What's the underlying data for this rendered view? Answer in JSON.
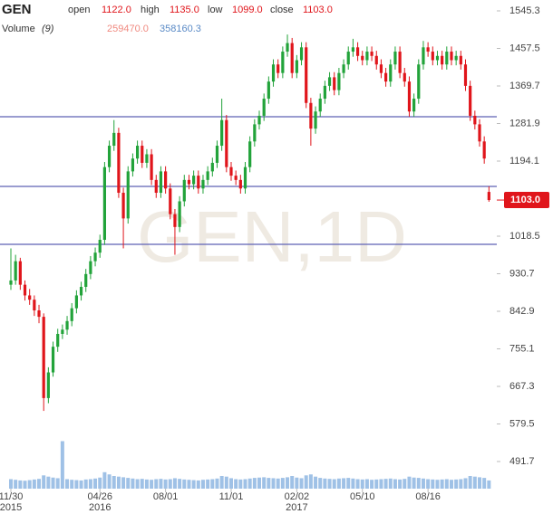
{
  "chart_data": {
    "type": "candlestick",
    "symbol": "GEN",
    "header_fields": [
      {
        "label": "open",
        "value": "1122.0"
      },
      {
        "label": "high",
        "value": "1135.0"
      },
      {
        "label": "low",
        "value": "1099.0"
      },
      {
        "label": "close",
        "value": "1103.0"
      }
    ],
    "volume_label": "Volume",
    "volume_period": "(9)",
    "volume_values": [
      "259470.0",
      "358160.3"
    ],
    "watermark": "GEN,1D",
    "ylim": [
      428.2,
      1570.7
    ],
    "yticks": [
      1545.3,
      1457.5,
      1369.7,
      1281.9,
      1194.1,
      1018.5,
      930.7,
      842.9,
      755.1,
      667.3,
      579.5,
      491.7
    ],
    "xticks": [
      {
        "value": 0,
        "label": "11/30"
      },
      {
        "value": 19,
        "label": "04/26"
      },
      {
        "value": 33,
        "label": "08/01"
      },
      {
        "value": 47,
        "label": "11/01"
      },
      {
        "value": 61,
        "label": "02/02"
      },
      {
        "value": 75,
        "label": "05/10"
      },
      {
        "value": 89,
        "label": "08/16"
      }
    ],
    "x_year_labels": [
      {
        "value": 0,
        "label": "2015"
      },
      {
        "value": 19,
        "label": "2016"
      },
      {
        "value": 61,
        "label": "2017"
      }
    ],
    "hlines": [
      1297.8,
      1134.9,
      999.5
    ],
    "last_price": {
      "value": 1103.0,
      "label": "1103.0"
    },
    "up_color": "#22a33a",
    "down_color": "#e0151b",
    "volume_color": "#9fc1e6",
    "hline_color": "#5d62b5",
    "candles": [
      [
        905,
        990,
        893,
        915
      ],
      [
        915,
        975,
        905,
        960
      ],
      [
        960,
        968,
        893,
        905
      ],
      [
        905,
        915,
        868,
        880
      ],
      [
        880,
        895,
        858,
        870
      ],
      [
        870,
        880,
        832,
        845
      ],
      [
        845,
        858,
        815,
        830
      ],
      [
        830,
        838,
        610,
        640
      ],
      [
        640,
        712,
        628,
        700
      ],
      [
        700,
        772,
        690,
        760
      ],
      [
        760,
        802,
        748,
        790
      ],
      [
        790,
        812,
        778,
        800
      ],
      [
        800,
        832,
        788,
        820
      ],
      [
        820,
        862,
        808,
        850
      ],
      [
        850,
        892,
        838,
        880
      ],
      [
        880,
        912,
        868,
        900
      ],
      [
        900,
        942,
        888,
        930
      ],
      [
        930,
        972,
        918,
        960
      ],
      [
        960,
        992,
        948,
        980
      ],
      [
        980,
        1022,
        968,
        1010
      ],
      [
        1010,
        1192,
        998,
        1180
      ],
      [
        1180,
        1242,
        1168,
        1230
      ],
      [
        1230,
        1290,
        1218,
        1260
      ],
      [
        1260,
        1272,
        1108,
        1120
      ],
      [
        1120,
        1132,
        990,
        1060
      ],
      [
        1060,
        1182,
        1048,
        1170
      ],
      [
        1170,
        1212,
        1158,
        1200
      ],
      [
        1200,
        1242,
        1188,
        1230
      ],
      [
        1230,
        1242,
        1178,
        1190
      ],
      [
        1190,
        1222,
        1178,
        1210
      ],
      [
        1210,
        1222,
        1138,
        1150
      ],
      [
        1150,
        1162,
        1108,
        1120
      ],
      [
        1120,
        1182,
        1108,
        1170
      ],
      [
        1170,
        1182,
        1118,
        1130
      ],
      [
        1130,
        1142,
        1058,
        1070
      ],
      [
        1070,
        1082,
        975,
        1040
      ],
      [
        1040,
        1112,
        1028,
        1100
      ],
      [
        1100,
        1162,
        1088,
        1150
      ],
      [
        1150,
        1162,
        1128,
        1140
      ],
      [
        1140,
        1172,
        1128,
        1160
      ],
      [
        1160,
        1172,
        1118,
        1130
      ],
      [
        1130,
        1162,
        1118,
        1150
      ],
      [
        1150,
        1182,
        1138,
        1170
      ],
      [
        1170,
        1202,
        1158,
        1190
      ],
      [
        1190,
        1242,
        1178,
        1230
      ],
      [
        1230,
        1340,
        1218,
        1290
      ],
      [
        1290,
        1302,
        1168,
        1180
      ],
      [
        1180,
        1192,
        1148,
        1160
      ],
      [
        1160,
        1172,
        1138,
        1150
      ],
      [
        1150,
        1162,
        1118,
        1130
      ],
      [
        1130,
        1192,
        1118,
        1180
      ],
      [
        1180,
        1252,
        1168,
        1240
      ],
      [
        1240,
        1292,
        1228,
        1280
      ],
      [
        1280,
        1312,
        1268,
        1300
      ],
      [
        1300,
        1352,
        1288,
        1340
      ],
      [
        1340,
        1392,
        1328,
        1380
      ],
      [
        1380,
        1432,
        1368,
        1420
      ],
      [
        1420,
        1432,
        1388,
        1400
      ],
      [
        1400,
        1462,
        1388,
        1450
      ],
      [
        1450,
        1490,
        1438,
        1470
      ],
      [
        1470,
        1482,
        1388,
        1400
      ],
      [
        1400,
        1442,
        1388,
        1430
      ],
      [
        1430,
        1472,
        1418,
        1460
      ],
      [
        1460,
        1472,
        1318,
        1330
      ],
      [
        1330,
        1342,
        1230,
        1270
      ],
      [
        1270,
        1322,
        1258,
        1310
      ],
      [
        1310,
        1352,
        1298,
        1340
      ],
      [
        1340,
        1382,
        1328,
        1370
      ],
      [
        1370,
        1402,
        1358,
        1390
      ],
      [
        1390,
        1402,
        1348,
        1360
      ],
      [
        1360,
        1412,
        1348,
        1400
      ],
      [
        1400,
        1432,
        1388,
        1420
      ],
      [
        1420,
        1462,
        1408,
        1450
      ],
      [
        1450,
        1480,
        1438,
        1460
      ],
      [
        1460,
        1472,
        1428,
        1440
      ],
      [
        1440,
        1452,
        1418,
        1430
      ],
      [
        1430,
        1462,
        1418,
        1450
      ],
      [
        1450,
        1462,
        1428,
        1440
      ],
      [
        1440,
        1452,
        1408,
        1420
      ],
      [
        1420,
        1432,
        1388,
        1400
      ],
      [
        1400,
        1412,
        1368,
        1380
      ],
      [
        1380,
        1432,
        1368,
        1420
      ],
      [
        1420,
        1462,
        1408,
        1450
      ],
      [
        1450,
        1462,
        1388,
        1400
      ],
      [
        1400,
        1412,
        1368,
        1380
      ],
      [
        1380,
        1392,
        1298,
        1310
      ],
      [
        1310,
        1352,
        1298,
        1340
      ],
      [
        1340,
        1432,
        1328,
        1420
      ],
      [
        1420,
        1475,
        1408,
        1460
      ],
      [
        1460,
        1472,
        1438,
        1450
      ],
      [
        1450,
        1462,
        1418,
        1430
      ],
      [
        1430,
        1452,
        1418,
        1440
      ],
      [
        1440,
        1452,
        1408,
        1420
      ],
      [
        1420,
        1462,
        1408,
        1450
      ],
      [
        1450,
        1462,
        1418,
        1430
      ],
      [
        1430,
        1452,
        1418,
        1440
      ],
      [
        1440,
        1452,
        1408,
        1420
      ],
      [
        1420,
        1432,
        1358,
        1370
      ],
      [
        1370,
        1382,
        1288,
        1300
      ],
      [
        1300,
        1312,
        1268,
        1280
      ],
      [
        1280,
        1292,
        1228,
        1240
      ],
      [
        1240,
        1252,
        1188,
        1200
      ],
      [
        1122,
        1135,
        1099,
        1103
      ]
    ],
    "volume": [
      300000,
      280000,
      260000,
      250000,
      270000,
      290000,
      310000,
      420000,
      380000,
      350000,
      330000,
      1500000,
      300000,
      280000,
      270000,
      260000,
      290000,
      300000,
      320000,
      350000,
      520000,
      450000,
      400000,
      380000,
      360000,
      340000,
      320000,
      300000,
      310000,
      290000,
      280000,
      300000,
      310000,
      290000,
      300000,
      330000,
      310000,
      290000,
      280000,
      270000,
      260000,
      280000,
      290000,
      300000,
      320000,
      400000,
      380000,
      330000,
      300000,
      290000,
      300000,
      320000,
      340000,
      350000,
      360000,
      340000,
      330000,
      320000,
      340000,
      360000,
      400000,
      350000,
      330000,
      420000,
      450000,
      380000,
      340000,
      320000,
      310000,
      300000,
      320000,
      330000,
      340000,
      320000,
      300000,
      290000,
      300000,
      280000,
      290000,
      300000,
      310000,
      320000,
      300000,
      290000,
      310000,
      380000,
      350000,
      340000,
      320000,
      300000,
      290000,
      280000,
      290000,
      300000,
      280000,
      290000,
      300000,
      330000,
      400000,
      380000,
      360000,
      340000,
      259470
    ]
  }
}
